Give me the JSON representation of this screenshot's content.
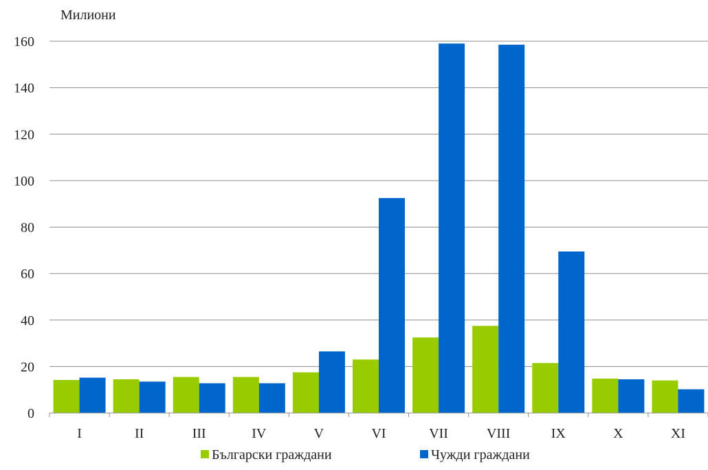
{
  "chart_data": {
    "type": "bar",
    "ylabel": "Милиони",
    "categories": [
      "I",
      "II",
      "III",
      "IV",
      "V",
      "VI",
      "VII",
      "VIII",
      "IX",
      "X",
      "XI"
    ],
    "series": [
      {
        "name": "Български граждани",
        "color": "#99cc00",
        "values": [
          14.2,
          14.5,
          15.5,
          15.5,
          17.5,
          23.0,
          32.5,
          37.5,
          21.5,
          14.8,
          14.0
        ]
      },
      {
        "name": "Чужди граждани",
        "color": "#0066cc",
        "values": [
          15.2,
          13.5,
          12.8,
          12.8,
          26.5,
          92.5,
          159.0,
          158.5,
          69.5,
          14.5,
          10.2
        ]
      }
    ],
    "ylim": [
      0,
      160
    ],
    "yticks": [
      0,
      20,
      40,
      60,
      80,
      100,
      120,
      140,
      160
    ],
    "grid": true,
    "legend_position": "bottom"
  }
}
